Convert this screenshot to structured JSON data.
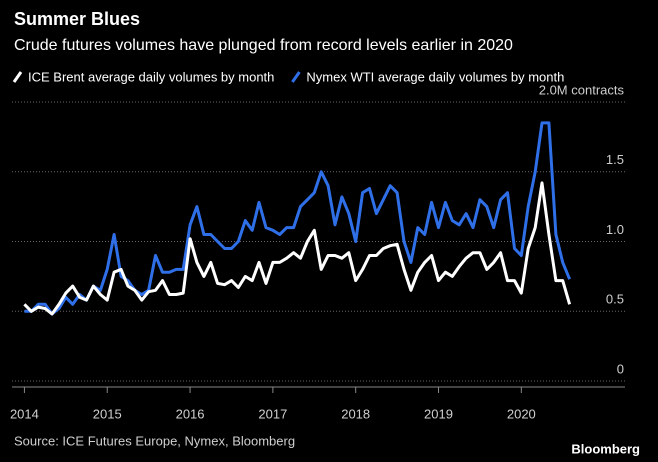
{
  "chart_data": {
    "type": "line",
    "title": "Summer Blues",
    "subtitle": "Crude futures volumes have plunged from record levels earlier in 2020",
    "source": "Source: ICE Futures Europe, Nymex, Bloomberg",
    "brand": "Bloomberg",
    "x": [
      2014,
      2014.083,
      2014.167,
      2014.25,
      2014.333,
      2014.417,
      2014.5,
      2014.583,
      2014.667,
      2014.75,
      2014.833,
      2014.917,
      2015,
      2015.083,
      2015.167,
      2015.25,
      2015.333,
      2015.417,
      2015.5,
      2015.583,
      2015.667,
      2015.75,
      2015.833,
      2015.917,
      2016,
      2016.083,
      2016.167,
      2016.25,
      2016.333,
      2016.417,
      2016.5,
      2016.583,
      2016.667,
      2016.75,
      2016.833,
      2016.917,
      2017,
      2017.083,
      2017.167,
      2017.25,
      2017.333,
      2017.417,
      2017.5,
      2017.583,
      2017.667,
      2017.75,
      2017.833,
      2017.917,
      2018,
      2018.083,
      2018.167,
      2018.25,
      2018.333,
      2018.417,
      2018.5,
      2018.583,
      2018.667,
      2018.75,
      2018.833,
      2018.917,
      2019,
      2019.083,
      2019.167,
      2019.25,
      2019.333,
      2019.417,
      2019.5,
      2019.583,
      2019.667,
      2019.75,
      2019.833,
      2019.917,
      2020,
      2020.083,
      2020.167,
      2020.25,
      2020.333,
      2020.417,
      2020.5,
      2020.583
    ],
    "series": [
      {
        "name": "ICE Brent average daily volumes by month",
        "color": "#ffffff",
        "values": [
          0.55,
          0.5,
          0.53,
          0.52,
          0.48,
          0.55,
          0.63,
          0.68,
          0.6,
          0.58,
          0.68,
          0.62,
          0.58,
          0.78,
          0.8,
          0.68,
          0.65,
          0.58,
          0.64,
          0.65,
          0.72,
          0.62,
          0.62,
          0.63,
          1.02,
          0.85,
          0.75,
          0.85,
          0.7,
          0.69,
          0.72,
          0.67,
          0.75,
          0.72,
          0.85,
          0.7,
          0.85,
          0.85,
          0.88,
          0.92,
          0.88,
          1.0,
          1.08,
          0.8,
          0.9,
          0.9,
          0.88,
          0.92,
          0.72,
          0.8,
          0.9,
          0.9,
          0.95,
          0.97,
          0.98,
          0.8,
          0.65,
          0.78,
          0.85,
          0.9,
          0.72,
          0.78,
          0.75,
          0.82,
          0.88,
          0.92,
          0.92,
          0.8,
          0.85,
          0.92,
          0.72,
          0.72,
          0.63,
          0.95,
          1.1,
          1.42,
          1.05,
          0.72,
          0.72,
          0.55
        ]
      },
      {
        "name": "Nymex WTI average daily volumes by month",
        "color": "#2f6fe8",
        "values": [
          0.5,
          0.5,
          0.55,
          0.55,
          0.48,
          0.52,
          0.6,
          0.55,
          0.62,
          0.58,
          0.68,
          0.65,
          0.8,
          1.05,
          0.75,
          0.72,
          0.65,
          0.62,
          0.65,
          0.9,
          0.78,
          0.78,
          0.8,
          0.8,
          1.12,
          1.25,
          1.05,
          1.05,
          1.0,
          0.95,
          0.95,
          1.0,
          1.15,
          1.08,
          1.28,
          1.1,
          1.08,
          1.05,
          1.1,
          1.1,
          1.25,
          1.3,
          1.35,
          1.5,
          1.4,
          1.12,
          1.32,
          1.2,
          1.0,
          1.35,
          1.38,
          1.2,
          1.3,
          1.4,
          1.35,
          1.0,
          0.85,
          1.1,
          1.05,
          1.28,
          1.1,
          1.28,
          1.15,
          1.12,
          1.2,
          1.1,
          1.3,
          1.25,
          1.1,
          1.3,
          1.35,
          0.95,
          0.9,
          1.25,
          1.5,
          1.85,
          1.85,
          1.05,
          0.85,
          0.73
        ]
      }
    ],
    "xlim": [
      2013.85,
      2020.95
    ],
    "xticks": [
      2014,
      2015,
      2016,
      2017,
      2018,
      2019,
      2020
    ],
    "ylim": [
      0,
      2.1
    ],
    "yticks": [
      0,
      0.5,
      {
        "value": 1,
        "label": "1.0"
      },
      1.5,
      {
        "value": 2,
        "label": "2.0M contracts"
      }
    ],
    "grid": true
  }
}
